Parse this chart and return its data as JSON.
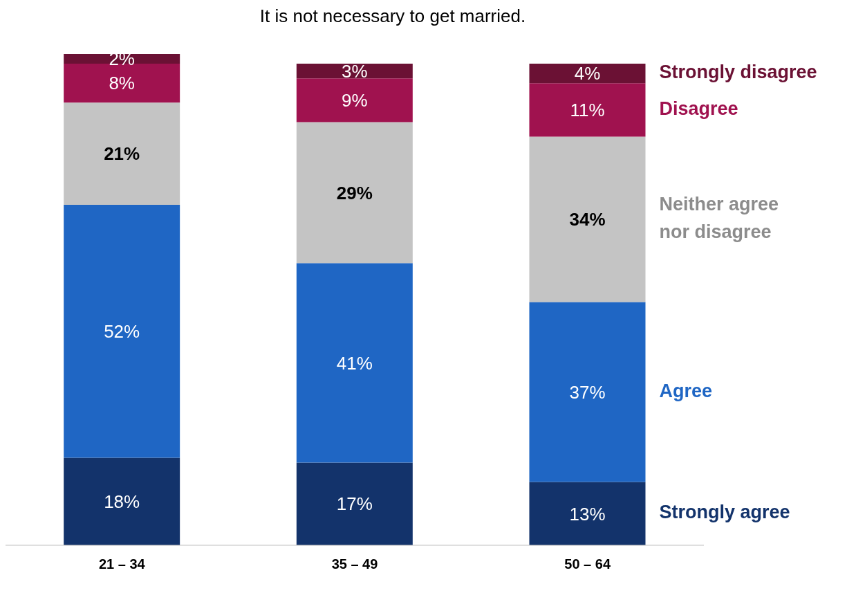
{
  "chart_data": {
    "type": "bar",
    "title": "It is not necessary to get married.",
    "categories": [
      "21 – 34",
      "35 – 49",
      "50 – 64"
    ],
    "stacked": true,
    "tick_labels": "x",
    "grid": false,
    "legend": false,
    "series": [
      {
        "name": "Strongly agree",
        "color": "#13336b",
        "values": [
          18,
          17,
          13
        ],
        "value_labels": [
          "18%",
          "17%",
          "13%"
        ]
      },
      {
        "name": "Agree",
        "color": "#1f66c4",
        "values": [
          52,
          41,
          37
        ],
        "value_labels": [
          "52%",
          "41%",
          "37%"
        ]
      },
      {
        "name": "Neither agree nor disagree",
        "color": "#c4c4c4",
        "values": [
          21,
          29,
          34
        ],
        "value_labels": [
          "21%",
          "29%",
          "34%"
        ]
      },
      {
        "name": "Disagree",
        "color": "#a0124f",
        "values": [
          8,
          9,
          11
        ],
        "value_labels": [
          "8%",
          "9%",
          "11%"
        ]
      },
      {
        "name": "Strongly disagree",
        "color": "#6b1134",
        "values": [
          2,
          3,
          4
        ],
        "value_labels": [
          "2%",
          "3%",
          "4%"
        ]
      }
    ]
  }
}
